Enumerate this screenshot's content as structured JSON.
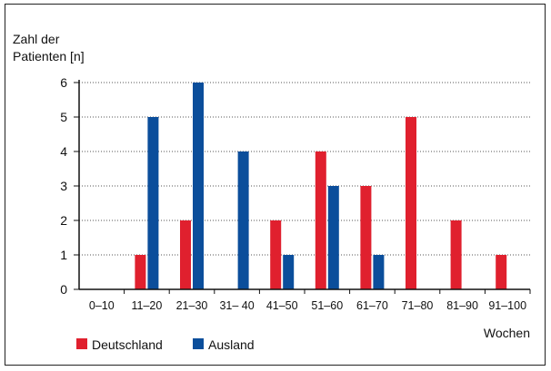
{
  "chart_data": {
    "type": "bar",
    "ylabel": [
      "Zahl der",
      "Patienten [n]"
    ],
    "xlabel": "Wochen",
    "categories": [
      "0–10",
      "11–20",
      "21–30",
      "31– 40",
      "41–50",
      "51–60",
      "61–70",
      "71–80",
      "81–90",
      "91–100"
    ],
    "series": [
      {
        "name": "Deutschland",
        "color": "#e0202e",
        "values": [
          0,
          1,
          2,
          0,
          2,
          4,
          3,
          5,
          2,
          1
        ]
      },
      {
        "name": "Ausland",
        "color": "#0b4e9b",
        "values": [
          0,
          5,
          6,
          4,
          1,
          3,
          1,
          0,
          0,
          0
        ]
      }
    ],
    "ylim": [
      0,
      6
    ],
    "yticks": [
      0,
      1,
      2,
      3,
      4,
      5,
      6
    ],
    "grid": "horizontal dotted",
    "legend": "bottom-left"
  }
}
